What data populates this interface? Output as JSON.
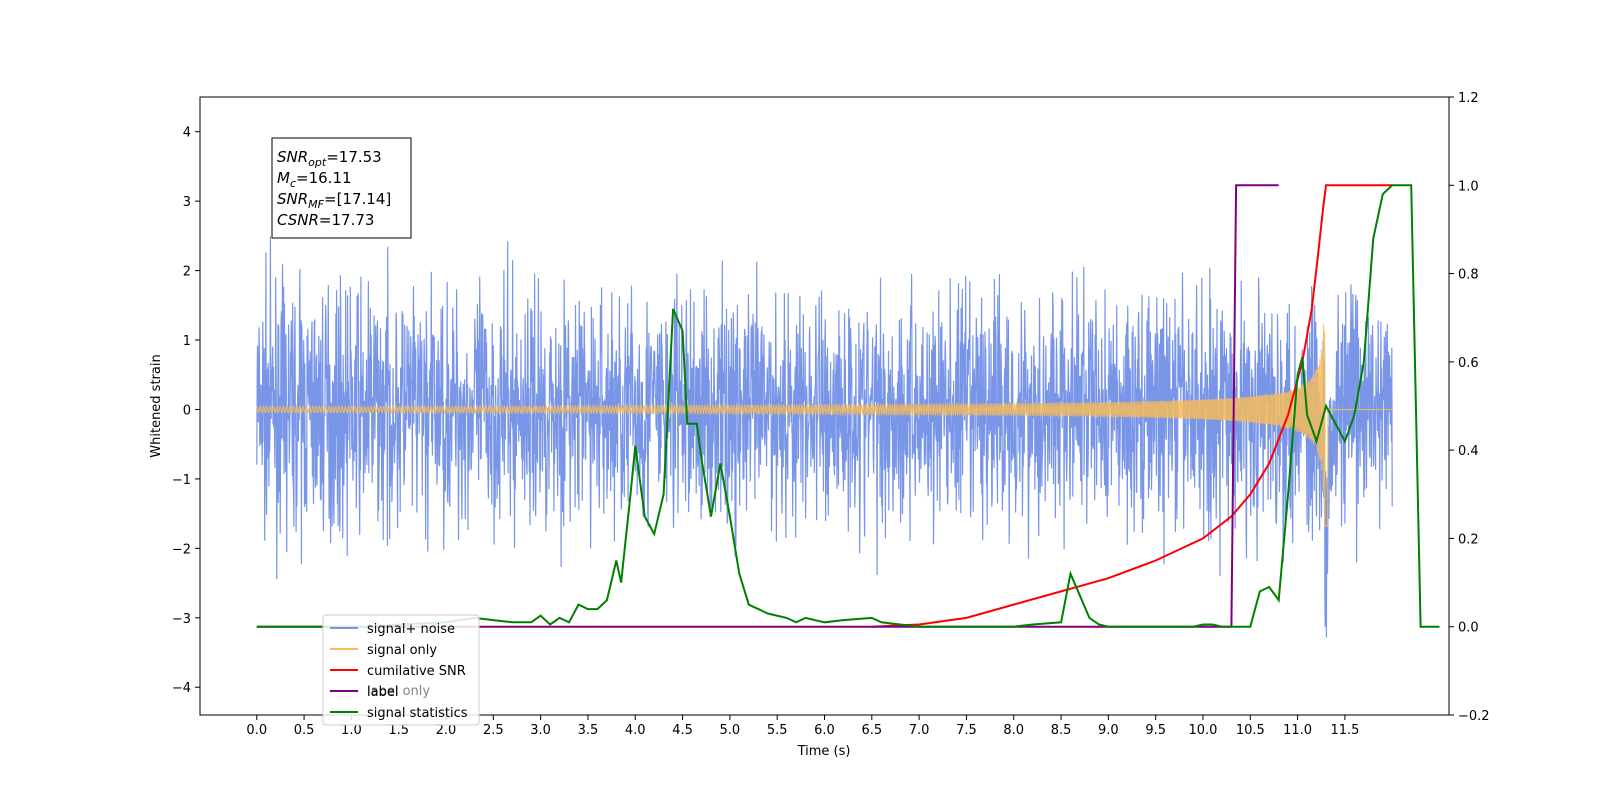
{
  "chart_data": {
    "type": "line",
    "xlabel": "Time (s)",
    "ylabel": "Whitened strain",
    "xlim": [
      -0.6,
      12.6
    ],
    "ylim": [
      -4.4,
      4.5
    ],
    "y2lim": [
      -0.2,
      1.2
    ],
    "x_ticks": [
      "0.0",
      "0.5",
      "1.0",
      "1.5",
      "2.0",
      "2.5",
      "3.0",
      "3.5",
      "4.0",
      "4.5",
      "5.0",
      "5.5",
      "6.0",
      "6.5",
      "7.0",
      "7.5",
      "8.0",
      "8.5",
      "9.0",
      "9.5",
      "10.0",
      "10.5",
      "11.0",
      "11.5"
    ],
    "y_ticks": [
      "−4",
      "−3",
      "−2",
      "−1",
      "0",
      "1",
      "2",
      "3",
      "4"
    ],
    "y2_ticks": [
      "−0.2",
      "0.0",
      "0.2",
      "0.4",
      "0.6",
      "0.8",
      "1.0",
      "1.2"
    ],
    "annotation": [
      {
        "var": "SNR",
        "sub": "opt",
        "val": "=17.53"
      },
      {
        "var": "M",
        "sub": "c",
        "val": "=16.11"
      },
      {
        "var": "SNR",
        "sub": "MF",
        "val": "=[17.14]"
      },
      {
        "var": "CSNR",
        "sub": "",
        "val": "=17.73"
      }
    ],
    "legend_position": "lower-left",
    "legend_ghost": "label only",
    "series": [
      {
        "name": "signal+ noise",
        "color": "#7895e8",
        "axis": "left",
        "note": "broadband noise of amplitude ~2.5 spanning 0–12 s"
      },
      {
        "name": "signal only",
        "color": "#f5bb5c",
        "axis": "left",
        "chirp_peak_time": 11.3,
        "chirp_peak_amp": 2.0
      },
      {
        "name": "cumilative SNR",
        "color": "#ff0000",
        "axis": "right",
        "points": [
          [
            6.5,
            0.0
          ],
          [
            7.0,
            0.005
          ],
          [
            7.5,
            0.02
          ],
          [
            8.0,
            0.05
          ],
          [
            8.5,
            0.08
          ],
          [
            9.0,
            0.11
          ],
          [
            9.5,
            0.15
          ],
          [
            10.0,
            0.2
          ],
          [
            10.3,
            0.25
          ],
          [
            10.5,
            0.3
          ],
          [
            10.7,
            0.37
          ],
          [
            10.9,
            0.48
          ],
          [
            11.05,
            0.6
          ],
          [
            11.15,
            0.72
          ],
          [
            11.22,
            0.85
          ],
          [
            11.27,
            0.95
          ],
          [
            11.3,
            1.0
          ],
          [
            12.0,
            1.0
          ]
        ]
      },
      {
        "name": "label",
        "color": "#7f007f",
        "axis": "right",
        "points": [
          [
            0.0,
            0.0
          ],
          [
            10.3,
            0.0
          ],
          [
            10.35,
            1.0
          ],
          [
            10.8,
            1.0
          ]
        ]
      },
      {
        "name": "signal statistics",
        "color": "#008000",
        "axis": "right",
        "points": [
          [
            0.0,
            0.0
          ],
          [
            1.3,
            0.0
          ],
          [
            1.5,
            0.005
          ],
          [
            2.0,
            0.01
          ],
          [
            2.3,
            0.02
          ],
          [
            2.5,
            0.015
          ],
          [
            2.7,
            0.01
          ],
          [
            2.9,
            0.01
          ],
          [
            3.0,
            0.025
          ],
          [
            3.1,
            0.005
          ],
          [
            3.2,
            0.02
          ],
          [
            3.3,
            0.01
          ],
          [
            3.4,
            0.05
          ],
          [
            3.5,
            0.04
          ],
          [
            3.6,
            0.04
          ],
          [
            3.7,
            0.06
          ],
          [
            3.8,
            0.15
          ],
          [
            3.85,
            0.1
          ],
          [
            3.95,
            0.3
          ],
          [
            4.0,
            0.41
          ],
          [
            4.1,
            0.25
          ],
          [
            4.2,
            0.21
          ],
          [
            4.3,
            0.3
          ],
          [
            4.4,
            0.72
          ],
          [
            4.5,
            0.67
          ],
          [
            4.55,
            0.46
          ],
          [
            4.65,
            0.46
          ],
          [
            4.7,
            0.38
          ],
          [
            4.8,
            0.25
          ],
          [
            4.9,
            0.37
          ],
          [
            5.0,
            0.25
          ],
          [
            5.1,
            0.12
          ],
          [
            5.2,
            0.05
          ],
          [
            5.4,
            0.03
          ],
          [
            5.6,
            0.02
          ],
          [
            5.7,
            0.01
          ],
          [
            5.8,
            0.02
          ],
          [
            6.0,
            0.01
          ],
          [
            6.2,
            0.015
          ],
          [
            6.5,
            0.02
          ],
          [
            6.6,
            0.01
          ],
          [
            6.8,
            0.005
          ],
          [
            7.0,
            0.0
          ],
          [
            7.5,
            0.0
          ],
          [
            7.7,
            0.0
          ],
          [
            8.0,
            0.0
          ],
          [
            8.2,
            0.005
          ],
          [
            8.5,
            0.01
          ],
          [
            8.6,
            0.12
          ],
          [
            8.7,
            0.07
          ],
          [
            8.8,
            0.02
          ],
          [
            8.9,
            0.005
          ],
          [
            9.0,
            0.0
          ],
          [
            9.5,
            0.0
          ],
          [
            9.9,
            0.0
          ],
          [
            10.0,
            0.005
          ],
          [
            10.1,
            0.005
          ],
          [
            10.2,
            0.0
          ],
          [
            10.5,
            0.0
          ],
          [
            10.6,
            0.08
          ],
          [
            10.7,
            0.09
          ],
          [
            10.8,
            0.06
          ],
          [
            10.9,
            0.3
          ],
          [
            11.0,
            0.57
          ],
          [
            11.05,
            0.61
          ],
          [
            11.1,
            0.48
          ],
          [
            11.2,
            0.42
          ],
          [
            11.3,
            0.5
          ],
          [
            11.4,
            0.46
          ],
          [
            11.5,
            0.42
          ],
          [
            11.6,
            0.48
          ],
          [
            11.7,
            0.6
          ],
          [
            11.8,
            0.88
          ],
          [
            11.9,
            0.98
          ],
          [
            12.0,
            1.0
          ],
          [
            12.2,
            1.0
          ],
          [
            12.3,
            0.0
          ],
          [
            12.4,
            0.0
          ],
          [
            12.5,
            0.0
          ]
        ]
      }
    ]
  }
}
